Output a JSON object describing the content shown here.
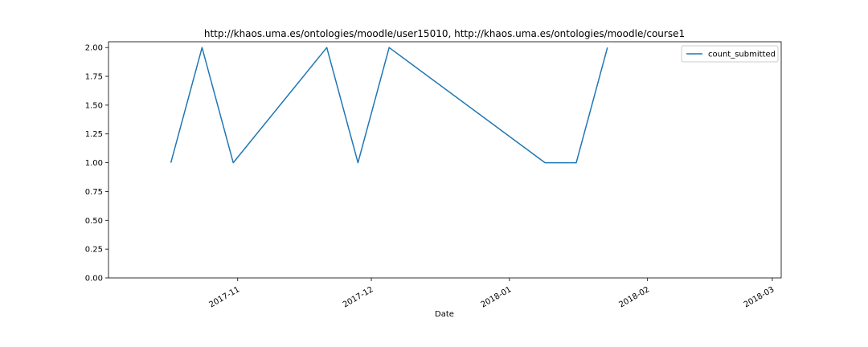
{
  "chart_data": {
    "type": "line",
    "title": "http://khaos.uma.es/ontologies/moodle/user15010, http://khaos.uma.es/ontologies/moodle/course1",
    "xlabel": "Date",
    "ylabel": "",
    "ylim": [
      0,
      2.05
    ],
    "xlim": [
      "2017-10-03",
      "2018-03-03"
    ],
    "x_ticks": [
      "2017-11-01",
      "2017-12-01",
      "2018-01-01",
      "2018-02-01",
      "2018-03-01"
    ],
    "x_tick_labels": [
      "2017-11",
      "2017-12",
      "2018-01",
      "2018-02",
      "2018-03"
    ],
    "y_ticks": [
      0,
      0.25,
      0.5,
      0.75,
      1,
      1.25,
      1.5,
      1.75,
      2
    ],
    "y_tick_labels": [
      "0.00",
      "0.25",
      "0.50",
      "0.75",
      "1.00",
      "1.25",
      "1.50",
      "1.75",
      "2.00"
    ],
    "grid": false,
    "legend": "top-right",
    "series": [
      {
        "name": "count_submitted",
        "color": "#1f77b4",
        "x": [
          "2017-10-17",
          "2017-10-24",
          "2017-10-31",
          "2017-11-21",
          "2017-11-28",
          "2017-12-05",
          "2018-01-09",
          "2018-01-16",
          "2018-01-23"
        ],
        "values": [
          1,
          2,
          1,
          2,
          1,
          2,
          1,
          1,
          2
        ]
      }
    ]
  }
}
